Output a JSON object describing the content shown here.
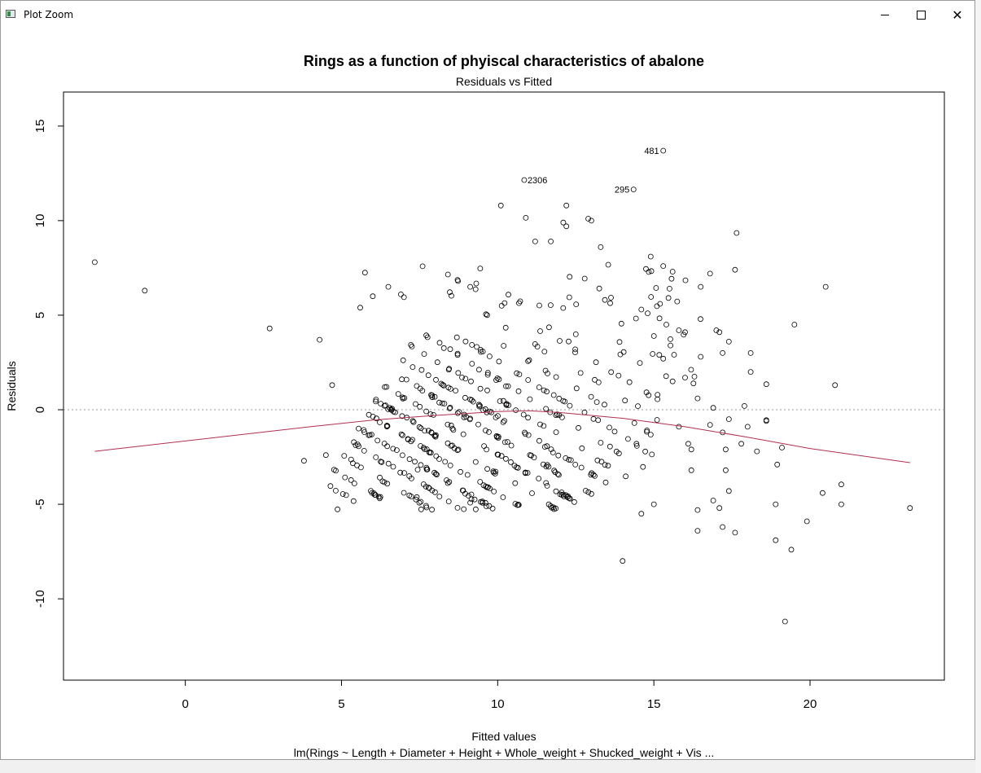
{
  "window": {
    "title": "Plot Zoom"
  },
  "chart_data": {
    "type": "scatter",
    "title": "Rings as a function of phyiscal characteristics of abalone",
    "subtitle": "Residuals vs Fitted",
    "xlabel": "Fitted values",
    "sublabel": "lm(Rings ~ Length + Diameter + Height + Whole_weight + Shucked_weight + Vis ...",
    "ylabel": "Residuals",
    "xlim": [
      -3.9,
      24.3
    ],
    "ylim": [
      -14.3,
      16.8
    ],
    "xticks": [
      0,
      5,
      10,
      15,
      20
    ],
    "yticks": [
      -10,
      -5,
      0,
      5,
      10,
      15
    ],
    "xticklabels": [
      "0",
      "5",
      "10",
      "15",
      "20"
    ],
    "yticklabels": [
      "-10",
      "-5",
      "0",
      "5",
      "10",
      "15"
    ],
    "grid": false,
    "reference_line": {
      "y": 0,
      "style": "dotted",
      "color": "#9a9a9a"
    },
    "smoother": {
      "color": "#b03050",
      "x": [
        -2.9,
        4.0,
        6.0,
        8.0,
        10.0,
        11.0,
        12.0,
        14.0,
        16.0,
        18.0,
        20.0,
        23.2
      ],
      "y": [
        -2.2,
        -0.9,
        -0.55,
        -0.3,
        -0.1,
        -0.05,
        -0.15,
        -0.45,
        -0.9,
        -1.45,
        -2.05,
        -2.8
      ]
    },
    "labeled_points": [
      {
        "label": "481",
        "x": 15.3,
        "y": 13.7
      },
      {
        "label": "2306",
        "x": 10.85,
        "y": 12.15
      },
      {
        "label": "295",
        "x": 14.35,
        "y": 11.65
      }
    ],
    "outliers": [
      [
        -2.9,
        7.8
      ],
      [
        -1.3,
        6.3
      ],
      [
        2.7,
        4.3
      ],
      [
        4.3,
        3.7
      ],
      [
        3.8,
        -2.7
      ],
      [
        4.5,
        -2.4
      ],
      [
        4.7,
        1.3
      ],
      [
        5.6,
        5.4
      ],
      [
        5.75,
        7.25
      ],
      [
        6.0,
        6.0
      ],
      [
        6.5,
        6.5
      ],
      [
        6.9,
        6.1
      ],
      [
        7.0,
        5.95
      ],
      [
        10.1,
        10.8
      ],
      [
        10.9,
        10.15
      ],
      [
        11.2,
        8.9
      ],
      [
        11.7,
        8.9
      ],
      [
        12.2,
        10.8
      ],
      [
        12.2,
        9.7
      ],
      [
        13.0,
        10.0
      ],
      [
        13.3,
        8.6
      ],
      [
        12.1,
        9.9
      ],
      [
        12.9,
        10.1
      ],
      [
        14.9,
        8.1
      ],
      [
        15.3,
        7.6
      ],
      [
        15.6,
        7.3
      ],
      [
        16.5,
        6.5
      ],
      [
        16.8,
        7.2
      ],
      [
        17.6,
        7.4
      ],
      [
        17.65,
        9.35
      ],
      [
        19.5,
        4.5
      ],
      [
        20.5,
        6.5
      ],
      [
        20.8,
        1.3
      ],
      [
        17.0,
        4.2
      ],
      [
        17.1,
        4.1
      ],
      [
        17.4,
        3.6
      ],
      [
        17.9,
        0.2
      ],
      [
        18.1,
        2.0
      ],
      [
        18.1,
        3.0
      ],
      [
        18.6,
        1.35
      ],
      [
        18.6,
        -0.6
      ],
      [
        18.95,
        -2.9
      ],
      [
        19.1,
        -2.0
      ],
      [
        18.9,
        -5.0
      ],
      [
        18.9,
        -6.9
      ],
      [
        19.4,
        -7.4
      ],
      [
        19.9,
        -5.9
      ],
      [
        20.4,
        -4.4
      ],
      [
        21.0,
        -5.0
      ],
      [
        21.0,
        -3.95
      ],
      [
        23.2,
        -5.2
      ],
      [
        19.2,
        -11.2
      ],
      [
        14.0,
        -8.0
      ],
      [
        14.6,
        -5.5
      ],
      [
        15.0,
        -5.0
      ],
      [
        16.4,
        -6.4
      ],
      [
        17.2,
        -6.2
      ],
      [
        17.6,
        -6.5
      ],
      [
        16.9,
        -4.8
      ],
      [
        17.1,
        -5.2
      ],
      [
        17.4,
        -4.3
      ],
      [
        16.2,
        -3.2
      ],
      [
        16.4,
        -5.3
      ],
      [
        16.8,
        -0.8
      ],
      [
        17.2,
        -1.2
      ],
      [
        17.3,
        -2.1
      ],
      [
        17.3,
        -3.2
      ],
      [
        16.0,
        1.7
      ],
      [
        16.3,
        1.75
      ],
      [
        16.4,
        0.6
      ],
      [
        16.1,
        -1.8
      ],
      [
        16.2,
        -2.1
      ],
      [
        15.8,
        -0.9
      ],
      [
        16.9,
        0.1
      ],
      [
        17.4,
        -0.5
      ],
      [
        17.8,
        -1.8
      ],
      [
        18.0,
        -0.9
      ],
      [
        18.3,
        -2.2
      ],
      [
        18.6,
        -0.55
      ],
      [
        15.5,
        6.4
      ],
      [
        15.2,
        5.6
      ],
      [
        15.4,
        4.5
      ],
      [
        15.8,
        4.2
      ],
      [
        15.3,
        2.7
      ],
      [
        15.6,
        1.5
      ],
      [
        14.6,
        5.3
      ],
      [
        14.8,
        5.1
      ],
      [
        15.0,
        3.9
      ],
      [
        16.0,
        4.1
      ],
      [
        16.5,
        2.8
      ],
      [
        17.2,
        3.0
      ]
    ],
    "bands": {
      "count": 18,
      "slope": -1,
      "top_residual_at_x5": 1.6,
      "step": 1.0,
      "points_per_band_note": "dense diagonal bands of observations for integer ring counts"
    }
  }
}
